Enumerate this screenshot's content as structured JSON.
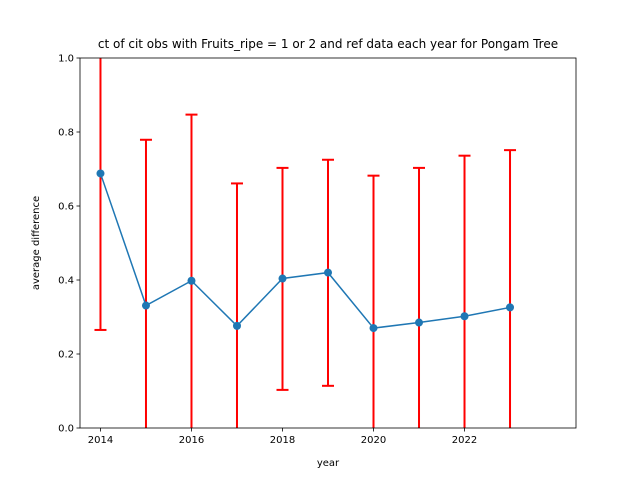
{
  "chart_data": {
    "type": "line",
    "title": "ct of cit obs with Fruits_ripe = 1 or 2 and ref data each year for Pongam Tree",
    "xlabel": "year",
    "ylabel": "average difference",
    "xlim": [
      2013.55,
      2024.45
    ],
    "ylim": [
      0.0,
      1.0
    ],
    "xticks": [
      2014,
      2016,
      2018,
      2020,
      2022
    ],
    "yticks": [
      0.0,
      0.2,
      0.4,
      0.6,
      0.8,
      1.0
    ],
    "ytick_labels": [
      "0.0",
      "0.2",
      "0.4",
      "0.6",
      "0.8",
      "1.0"
    ],
    "grid": false,
    "line_color": "#1f77b4",
    "errorbar_color": "#ff0000",
    "series": [
      {
        "x": [
          2014,
          2015,
          2016,
          2017,
          2018,
          2019,
          2020,
          2021,
          2022,
          2023
        ],
        "y": [
          0.688,
          0.331,
          0.398,
          0.276,
          0.404,
          0.42,
          0.27,
          0.285,
          0.302,
          0.326
        ],
        "err_low": [
          0.265,
          0.0,
          0.0,
          0.0,
          0.103,
          0.114,
          0.0,
          0.0,
          0.0,
          0.0
        ],
        "err_high": [
          1.0,
          0.779,
          0.847,
          0.661,
          0.703,
          0.725,
          0.682,
          0.703,
          0.736,
          0.751
        ]
      }
    ]
  }
}
